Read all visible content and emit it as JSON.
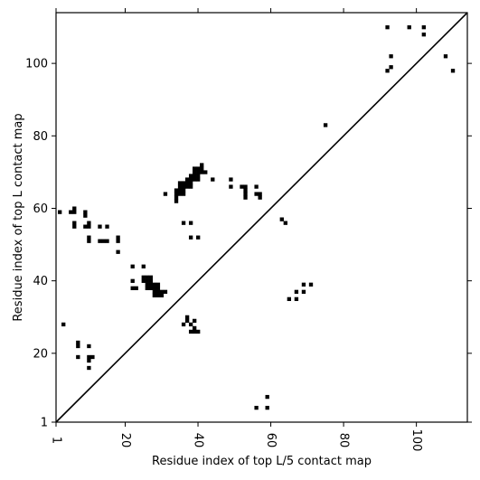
{
  "chart_data": {
    "type": "scatter",
    "title": "",
    "xlabel": "Residue index of top L/5 contact map",
    "ylabel": "Residue index of top L contact map",
    "xlim": [
      1,
      114
    ],
    "ylim": [
      1,
      114
    ],
    "xticks": [
      1,
      20,
      40,
      60,
      80,
      100
    ],
    "yticks": [
      1,
      20,
      40,
      60,
      80,
      100
    ],
    "grid": false,
    "legend": "none",
    "marker": "square",
    "marker_color": "#000000",
    "diagonal": {
      "from": [
        1,
        1
      ],
      "to": [
        114,
        114
      ]
    },
    "points": [
      [
        2,
        59
      ],
      [
        3,
        28
      ],
      [
        5,
        59
      ],
      [
        6,
        59
      ],
      [
        6,
        60
      ],
      [
        6,
        55
      ],
      [
        6,
        56
      ],
      [
        7,
        19
      ],
      [
        7,
        22
      ],
      [
        7,
        23
      ],
      [
        9,
        55
      ],
      [
        9,
        58
      ],
      [
        9,
        59
      ],
      [
        10,
        55
      ],
      [
        10,
        56
      ],
      [
        10,
        51
      ],
      [
        10,
        52
      ],
      [
        10,
        22
      ],
      [
        10,
        18
      ],
      [
        10,
        19
      ],
      [
        10,
        16
      ],
      [
        11,
        19
      ],
      [
        13,
        55
      ],
      [
        13,
        51
      ],
      [
        14,
        51
      ],
      [
        15,
        51
      ],
      [
        15,
        55
      ],
      [
        18,
        51
      ],
      [
        18,
        52
      ],
      [
        18,
        48
      ],
      [
        22,
        44
      ],
      [
        22,
        40
      ],
      [
        22,
        38
      ],
      [
        23,
        38
      ],
      [
        25,
        44
      ],
      [
        25,
        41
      ],
      [
        25,
        40
      ],
      [
        26,
        41
      ],
      [
        26,
        40
      ],
      [
        26,
        39
      ],
      [
        26,
        38
      ],
      [
        27,
        41
      ],
      [
        27,
        40
      ],
      [
        27,
        39
      ],
      [
        27,
        38
      ],
      [
        28,
        39
      ],
      [
        28,
        38
      ],
      [
        28,
        37
      ],
      [
        28,
        36
      ],
      [
        29,
        39
      ],
      [
        29,
        38
      ],
      [
        29,
        37
      ],
      [
        29,
        36
      ],
      [
        30,
        37
      ],
      [
        30,
        36
      ],
      [
        31,
        37
      ],
      [
        31,
        64
      ],
      [
        34,
        65
      ],
      [
        34,
        64
      ],
      [
        34,
        63
      ],
      [
        34,
        62
      ],
      [
        35,
        67
      ],
      [
        35,
        66
      ],
      [
        35,
        65
      ],
      [
        35,
        64
      ],
      [
        36,
        67
      ],
      [
        36,
        66
      ],
      [
        36,
        65
      ],
      [
        36,
        64
      ],
      [
        37,
        68
      ],
      [
        37,
        67
      ],
      [
        37,
        66
      ],
      [
        38,
        69
      ],
      [
        38,
        68
      ],
      [
        38,
        67
      ],
      [
        38,
        66
      ],
      [
        39,
        71
      ],
      [
        39,
        70
      ],
      [
        39,
        69
      ],
      [
        39,
        68
      ],
      [
        40,
        71
      ],
      [
        40,
        70
      ],
      [
        40,
        69
      ],
      [
        40,
        68
      ],
      [
        41,
        72
      ],
      [
        41,
        71
      ],
      [
        41,
        70
      ],
      [
        42,
        70
      ],
      [
        44,
        68
      ],
      [
        36,
        56
      ],
      [
        38,
        56
      ],
      [
        38,
        52
      ],
      [
        40,
        52
      ],
      [
        36,
        28
      ],
      [
        37,
        29
      ],
      [
        37,
        30
      ],
      [
        38,
        28
      ],
      [
        38,
        26
      ],
      [
        39,
        29
      ],
      [
        39,
        27
      ],
      [
        39,
        26
      ],
      [
        40,
        26
      ],
      [
        49,
        68
      ],
      [
        49,
        66
      ],
      [
        52,
        66
      ],
      [
        53,
        66
      ],
      [
        53,
        65
      ],
      [
        53,
        64
      ],
      [
        53,
        63
      ],
      [
        56,
        66
      ],
      [
        56,
        64
      ],
      [
        57,
        64
      ],
      [
        57,
        63
      ],
      [
        63,
        57
      ],
      [
        64,
        56
      ],
      [
        65,
        35
      ],
      [
        67,
        37
      ],
      [
        67,
        35
      ],
      [
        69,
        39
      ],
      [
        69,
        37
      ],
      [
        71,
        39
      ],
      [
        75,
        83
      ],
      [
        92,
        110
      ],
      [
        92,
        98
      ],
      [
        93,
        102
      ],
      [
        93,
        99
      ],
      [
        98,
        110
      ],
      [
        102,
        110
      ],
      [
        102,
        108
      ],
      [
        108,
        102
      ],
      [
        110,
        98
      ],
      [
        56,
        5
      ],
      [
        59,
        5
      ],
      [
        59,
        8
      ]
    ]
  }
}
